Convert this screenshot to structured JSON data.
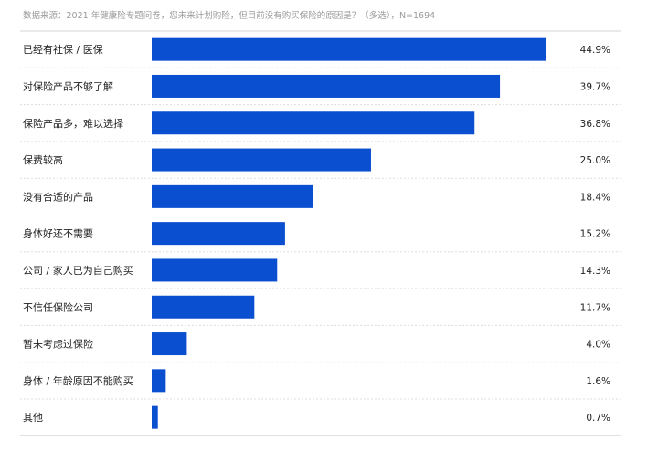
{
  "source_note": "数据来源：2021 年健康险专题问卷，您未来计划购险，但目前没有购买保险的原因是？（多选），N=1694",
  "chart_data": {
    "type": "bar",
    "orientation": "horizontal",
    "categories": [
      "已经有社保 / 医保",
      "对保险产品不够了解",
      "保险产品多，难以选择",
      "保费较高",
      "没有合适的产品",
      "身体好还不需要",
      "公司 / 家人已为自己购买",
      "不信任保险公司",
      "暂未考虑过保险",
      "身体 / 年龄原因不能购买",
      "其他"
    ],
    "values": [
      44.9,
      39.7,
      36.8,
      25.0,
      18.4,
      15.2,
      14.3,
      11.7,
      4.0,
      1.6,
      0.7
    ],
    "value_labels": [
      "44.9%",
      "39.7%",
      "36.8%",
      "25.0%",
      "18.4%",
      "15.2%",
      "14.3%",
      "11.7%",
      "4.0%",
      "1.6%",
      "0.7%"
    ],
    "xlim": [
      0,
      44.9
    ],
    "bar_color": "#0b4fd1",
    "grid": "dashed horizontal separators between rows"
  }
}
